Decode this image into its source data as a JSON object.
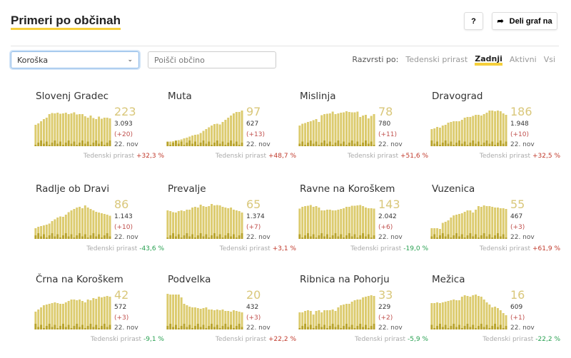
{
  "header": {
    "title": "Primeri po občinah",
    "help_label": "?",
    "share_label": "Deli graf na"
  },
  "filters": {
    "region": "Koroška",
    "search_placeholder": "Poišči občino",
    "sort_label": "Razvrsti po:",
    "sort_options": [
      "Tedenski prirast",
      "Zadnji",
      "Aktivni",
      "Vsi"
    ],
    "active_sort": "Zadnji"
  },
  "colors": {
    "bar": "#dccb6e",
    "bar_dark": "#a8920e",
    "accent": "#f5cf3a",
    "positive": "#c0392b",
    "negative": "#27a050"
  },
  "growth_label": "Tedenski prirast",
  "cards": [
    {
      "name": "Slovenj Gradec",
      "last": "223",
      "total": "3.093",
      "delta": "(+20)",
      "date": "22. nov",
      "growth": "+32,3 %",
      "bars": [
        60,
        64,
        70,
        76,
        80,
        90,
        93,
        92,
        94,
        91,
        92,
        94,
        90,
        92,
        95,
        89,
        90,
        90,
        84,
        80,
        86,
        79,
        76,
        83,
        77,
        80,
        80,
        78
      ]
    },
    {
      "name": "Muta",
      "last": "97",
      "total": "627",
      "delta": "(+13)",
      "date": "22. nov",
      "growth": "+48,7 %",
      "bars": [
        12,
        13,
        14,
        15,
        17,
        19,
        22,
        24,
        27,
        30,
        32,
        33,
        37,
        43,
        48,
        53,
        58,
        62,
        63,
        61,
        68,
        74,
        80,
        86,
        92,
        96,
        96,
        100
      ]
    },
    {
      "name": "Mislinja",
      "last": "78",
      "total": "780",
      "delta": "(+11)",
      "date": "22. nov",
      "growth": "+51,6 %",
      "bars": [
        58,
        63,
        65,
        68,
        70,
        73,
        76,
        68,
        87,
        90,
        91,
        92,
        97,
        90,
        92,
        94,
        95,
        98,
        96,
        95,
        95,
        97,
        82,
        86,
        88,
        78,
        85,
        90
      ]
    },
    {
      "name": "Dravograd",
      "last": "186",
      "total": "1.948",
      "delta": "(+10)",
      "date": "22. nov",
      "growth": "+32,5 %",
      "bars": [
        48,
        50,
        54,
        52,
        58,
        60,
        66,
        68,
        70,
        70,
        70,
        74,
        80,
        82,
        82,
        85,
        88,
        88,
        86,
        90,
        94,
        100,
        100,
        98,
        102,
        98,
        92,
        88
      ]
    },
    {
      "name": "Radlje ob Dravi",
      "last": "86",
      "total": "1.143",
      "delta": "(+10)",
      "date": "22. nov",
      "growth": "-43,6 %",
      "bars": [
        30,
        34,
        36,
        38,
        40,
        43,
        50,
        55,
        60,
        63,
        62,
        68,
        75,
        80,
        84,
        88,
        90,
        86,
        94,
        88,
        84,
        80,
        76,
        74,
        72,
        70,
        68,
        65
      ]
    },
    {
      "name": "Prevalje",
      "last": "65",
      "total": "1.374",
      "delta": "(+7)",
      "date": "22. nov",
      "growth": "+3,1 %",
      "bars": [
        80,
        78,
        75,
        74,
        78,
        80,
        78,
        82,
        82,
        88,
        90,
        88,
        96,
        92,
        90,
        92,
        98,
        94,
        95,
        94,
        90,
        88,
        86,
        88,
        82,
        80,
        78,
        74
      ]
    },
    {
      "name": "Ravne na Koroškem",
      "last": "143",
      "total": "2.042",
      "delta": "(+6)",
      "date": "22. nov",
      "growth": "-19,0 %",
      "bars": [
        85,
        90,
        92,
        93,
        95,
        90,
        92,
        88,
        80,
        80,
        82,
        82,
        80,
        80,
        82,
        84,
        86,
        90,
        90,
        93,
        93,
        94,
        95,
        92,
        88,
        86,
        86,
        85
      ]
    },
    {
      "name": "Vuzenica",
      "last": "55",
      "total": "467",
      "delta": "(+3)",
      "date": "22. nov",
      "growth": "+61,9 %",
      "bars": [
        30,
        30,
        30,
        28,
        45,
        48,
        52,
        60,
        66,
        68,
        70,
        72,
        76,
        80,
        80,
        74,
        82,
        92,
        90,
        94,
        92,
        92,
        90,
        88,
        88,
        86,
        86,
        84
      ]
    },
    {
      "name": "Črna na Koroškem",
      "last": "42",
      "total": "572",
      "delta": "(+3)",
      "date": "22. nov",
      "growth": "-9,1 %",
      "bars": [
        50,
        56,
        62,
        68,
        70,
        72,
        74,
        76,
        74,
        72,
        72,
        76,
        80,
        84,
        84,
        82,
        84,
        80,
        76,
        84,
        82,
        88,
        86,
        92,
        90,
        92,
        94,
        92
      ]
    },
    {
      "name": "Podvelka",
      "last": "20",
      "total": "432",
      "delta": "(+3)",
      "date": "22. nov",
      "growth": "+22,2 %",
      "bars": [
        100,
        98,
        98,
        98,
        98,
        90,
        72,
        68,
        64,
        62,
        62,
        60,
        58,
        60,
        62,
        56,
        56,
        54,
        56,
        54,
        56,
        52,
        52,
        50,
        54,
        52,
        50,
        48
      ]
    },
    {
      "name": "Ribnica na Pohorju",
      "last": "33",
      "total": "229",
      "delta": "(+2)",
      "date": "22. nov",
      "growth": "-5,9 %",
      "bars": [
        48,
        48,
        52,
        54,
        52,
        42,
        52,
        54,
        48,
        54,
        54,
        54,
        56,
        52,
        62,
        68,
        70,
        72,
        72,
        78,
        82,
        84,
        84,
        90,
        92,
        94,
        96,
        94
      ]
    },
    {
      "name": "Mežica",
      "last": "16",
      "total": "609",
      "delta": "(+1)",
      "date": "22. nov",
      "growth": "-22,2 %",
      "bars": [
        74,
        74,
        76,
        74,
        76,
        78,
        80,
        82,
        84,
        82,
        82,
        92,
        96,
        94,
        92,
        96,
        98,
        94,
        92,
        84,
        76,
        70,
        62,
        64,
        60,
        54,
        46,
        40
      ]
    }
  ]
}
